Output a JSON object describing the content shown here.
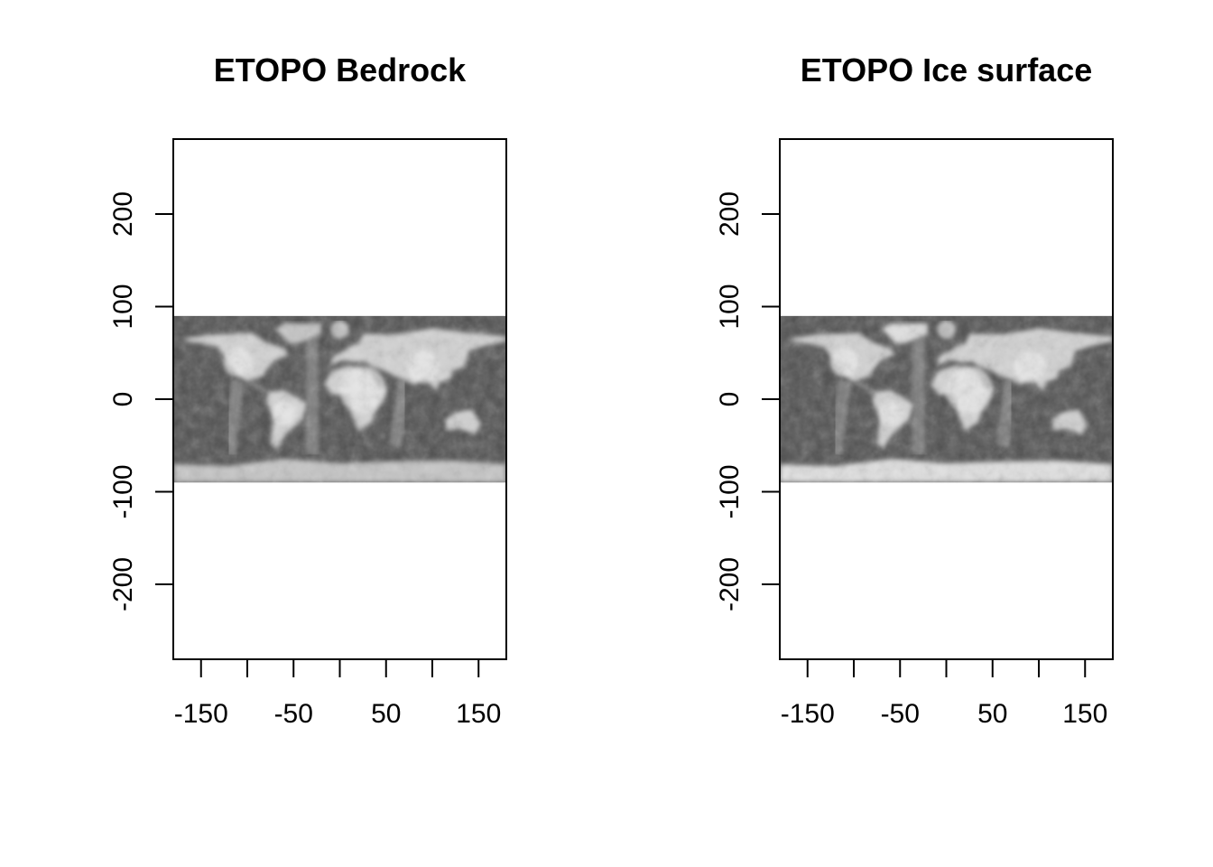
{
  "chart_data": [
    {
      "type": "heatmap",
      "title": "ETOPO Bedrock",
      "variant": "bedrock",
      "xlabel": "",
      "ylabel": "",
      "xlim": [
        -180,
        180
      ],
      "ylim": [
        -281,
        281
      ],
      "x_ticks": [
        -150,
        -100,
        -50,
        0,
        50,
        100,
        150
      ],
      "x_tick_labels": [
        "-150",
        "-50",
        "50",
        "150"
      ],
      "x_tick_label_values": [
        -150,
        -50,
        50,
        150
      ],
      "y_ticks": [
        -200,
        -100,
        0,
        100,
        200
      ],
      "y_tick_labels": [
        "-200",
        "-100",
        "0",
        "100",
        "200"
      ],
      "raster_extent": {
        "x": [
          -180,
          180
        ],
        "y": [
          -90,
          90
        ]
      },
      "colors": {
        "ocean_deep": "#505050",
        "ocean_mid": "#7a7a7a",
        "land": "#d2d2d2",
        "highland": "#ececec",
        "ice": "#c4c4c4"
      },
      "grid": false,
      "legend": "none"
    },
    {
      "type": "heatmap",
      "title": "ETOPO Ice surface",
      "variant": "ice",
      "xlabel": "",
      "ylabel": "",
      "xlim": [
        -180,
        180
      ],
      "ylim": [
        -281,
        281
      ],
      "x_ticks": [
        -150,
        -100,
        -50,
        0,
        50,
        100,
        150
      ],
      "x_tick_labels": [
        "-150",
        "-50",
        "50",
        "150"
      ],
      "x_tick_label_values": [
        -150,
        -50,
        50,
        150
      ],
      "y_ticks": [
        -200,
        -100,
        0,
        100,
        200
      ],
      "y_tick_labels": [
        "-200",
        "-100",
        "0",
        "100",
        "200"
      ],
      "raster_extent": {
        "x": [
          -180,
          180
        ],
        "y": [
          -90,
          90
        ]
      },
      "colors": {
        "ocean_deep": "#505050",
        "ocean_mid": "#7a7a7a",
        "land": "#d2d2d2",
        "highland": "#ececec",
        "ice": "#e0e0e0"
      },
      "grid": false,
      "legend": "none"
    }
  ]
}
